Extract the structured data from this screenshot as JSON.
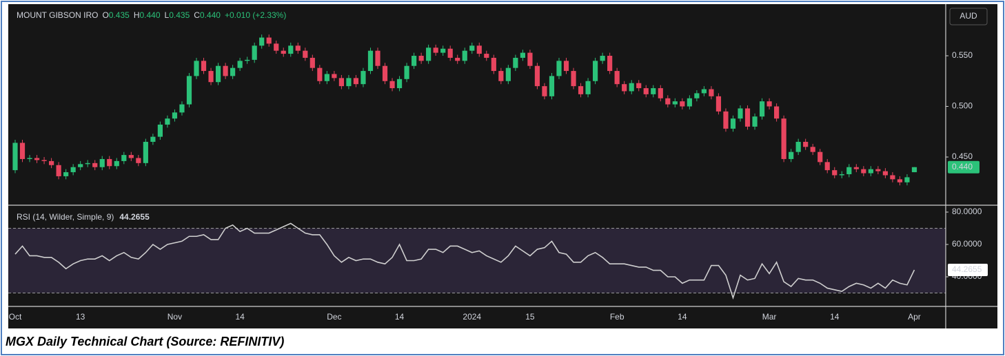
{
  "header": {
    "symbol": "MOUNT GIBSON IRO",
    "fields": [
      {
        "key": "O",
        "value": "0.435"
      },
      {
        "key": "H",
        "value": "0.440"
      },
      {
        "key": "L",
        "value": "0.435"
      },
      {
        "key": "C",
        "value": "0.440"
      }
    ],
    "change": "+0.010 (+2.33%)",
    "currency": "AUD"
  },
  "caption": "MGX Daily Technical Chart (Source: REFINITIV)",
  "chart_data": [
    {
      "type": "candlestick",
      "up_color": "#2bc279",
      "down_color": "#e8455f",
      "ylim": [
        0.4024,
        0.5983
      ],
      "yticks": [
        {
          "value": 0.45,
          "label": "0.450"
        },
        {
          "value": 0.5,
          "label": "0.500"
        },
        {
          "value": 0.55,
          "label": "0.550"
        }
      ],
      "last_price": {
        "value": 0.44,
        "label": "0.440"
      },
      "open": [
        0.437,
        0.464,
        0.448,
        0.449,
        0.447,
        0.446,
        0.442,
        0.431,
        0.435,
        0.44,
        0.443,
        0.444,
        0.44,
        0.448,
        0.441,
        0.446,
        0.452,
        0.449,
        0.444,
        0.465,
        0.47,
        0.482,
        0.488,
        0.494,
        0.502,
        0.53,
        0.545,
        0.535,
        0.524,
        0.54,
        0.53,
        0.538,
        0.545,
        0.546,
        0.56,
        0.568,
        0.562,
        0.555,
        0.552,
        0.56,
        0.555,
        0.548,
        0.538,
        0.525,
        0.532,
        0.528,
        0.52,
        0.528,
        0.522,
        0.535,
        0.555,
        0.54,
        0.525,
        0.518,
        0.527,
        0.54,
        0.55,
        0.545,
        0.558,
        0.553,
        0.557,
        0.548,
        0.545,
        0.555,
        0.56,
        0.552,
        0.548,
        0.535,
        0.525,
        0.538,
        0.548,
        0.553,
        0.54,
        0.52,
        0.51,
        0.53,
        0.545,
        0.535,
        0.52,
        0.512,
        0.525,
        0.545,
        0.55,
        0.535,
        0.522,
        0.515,
        0.523,
        0.518,
        0.512,
        0.518,
        0.508,
        0.502,
        0.505,
        0.5,
        0.508,
        0.513,
        0.517,
        0.51,
        0.495,
        0.478,
        0.488,
        0.498,
        0.48,
        0.49,
        0.505,
        0.5,
        0.488,
        0.448,
        0.455,
        0.465,
        0.46,
        0.455,
        0.445,
        0.437,
        0.432,
        0.433,
        0.44,
        0.438,
        0.434,
        0.438,
        0.436,
        0.432,
        0.428,
        0.425,
        0.435
      ],
      "high": [
        0.467,
        0.467,
        0.452,
        0.452,
        0.45,
        0.449,
        0.445,
        0.438,
        0.443,
        0.446,
        0.447,
        0.447,
        0.451,
        0.451,
        0.449,
        0.455,
        0.455,
        0.452,
        0.468,
        0.473,
        0.485,
        0.491,
        0.497,
        0.505,
        0.533,
        0.548,
        0.548,
        0.538,
        0.543,
        0.543,
        0.541,
        0.548,
        0.549,
        0.563,
        0.571,
        0.571,
        0.565,
        0.558,
        0.563,
        0.563,
        0.558,
        0.551,
        0.541,
        0.535,
        0.535,
        0.531,
        0.531,
        0.531,
        0.538,
        0.558,
        0.558,
        0.543,
        0.528,
        0.53,
        0.543,
        0.553,
        0.553,
        0.561,
        0.561,
        0.56,
        0.56,
        0.551,
        0.558,
        0.563,
        0.563,
        0.555,
        0.551,
        0.538,
        0.541,
        0.551,
        0.556,
        0.556,
        0.543,
        0.523,
        0.533,
        0.548,
        0.548,
        0.538,
        0.523,
        0.528,
        0.548,
        0.553,
        0.553,
        0.538,
        0.525,
        0.526,
        0.526,
        0.521,
        0.521,
        0.521,
        0.511,
        0.508,
        0.508,
        0.511,
        0.516,
        0.52,
        0.52,
        0.513,
        0.498,
        0.491,
        0.501,
        0.501,
        0.493,
        0.508,
        0.508,
        0.503,
        0.491,
        0.458,
        0.468,
        0.468,
        0.463,
        0.458,
        0.448,
        0.44,
        0.436,
        0.443,
        0.443,
        0.441,
        0.441,
        0.441,
        0.439,
        0.435,
        0.431,
        0.433,
        0.44
      ],
      "low": [
        0.434,
        0.445,
        0.445,
        0.444,
        0.443,
        0.439,
        0.428,
        0.428,
        0.432,
        0.437,
        0.44,
        0.437,
        0.437,
        0.438,
        0.438,
        0.443,
        0.446,
        0.441,
        0.441,
        0.462,
        0.467,
        0.479,
        0.485,
        0.491,
        0.499,
        0.527,
        0.532,
        0.521,
        0.521,
        0.527,
        0.527,
        0.535,
        0.542,
        0.543,
        0.557,
        0.559,
        0.552,
        0.549,
        0.549,
        0.552,
        0.545,
        0.535,
        0.522,
        0.522,
        0.525,
        0.517,
        0.517,
        0.519,
        0.519,
        0.532,
        0.537,
        0.522,
        0.515,
        0.515,
        0.524,
        0.537,
        0.542,
        0.542,
        0.55,
        0.55,
        0.545,
        0.542,
        0.542,
        0.552,
        0.549,
        0.545,
        0.532,
        0.522,
        0.522,
        0.535,
        0.545,
        0.537,
        0.517,
        0.507,
        0.507,
        0.527,
        0.532,
        0.517,
        0.509,
        0.509,
        0.522,
        0.542,
        0.532,
        0.519,
        0.512,
        0.512,
        0.515,
        0.509,
        0.509,
        0.505,
        0.499,
        0.499,
        0.497,
        0.497,
        0.505,
        0.51,
        0.507,
        0.492,
        0.475,
        0.475,
        0.485,
        0.477,
        0.477,
        0.487,
        0.497,
        0.485,
        0.445,
        0.445,
        0.452,
        0.457,
        0.452,
        0.442,
        0.434,
        0.429,
        0.429,
        0.43,
        0.435,
        0.431,
        0.431,
        0.433,
        0.429,
        0.425,
        0.422,
        0.422,
        0.435
      ],
      "close": [
        0.464,
        0.448,
        0.449,
        0.447,
        0.446,
        0.442,
        0.431,
        0.435,
        0.44,
        0.443,
        0.444,
        0.44,
        0.448,
        0.441,
        0.446,
        0.452,
        0.449,
        0.444,
        0.465,
        0.47,
        0.482,
        0.488,
        0.494,
        0.502,
        0.53,
        0.545,
        0.535,
        0.524,
        0.54,
        0.53,
        0.538,
        0.545,
        0.546,
        0.56,
        0.568,
        0.562,
        0.555,
        0.552,
        0.56,
        0.555,
        0.548,
        0.538,
        0.525,
        0.532,
        0.528,
        0.52,
        0.528,
        0.522,
        0.535,
        0.555,
        0.54,
        0.525,
        0.518,
        0.527,
        0.54,
        0.55,
        0.545,
        0.558,
        0.553,
        0.557,
        0.548,
        0.545,
        0.555,
        0.56,
        0.552,
        0.548,
        0.535,
        0.525,
        0.538,
        0.548,
        0.553,
        0.54,
        0.52,
        0.51,
        0.53,
        0.545,
        0.535,
        0.52,
        0.512,
        0.525,
        0.545,
        0.55,
        0.535,
        0.522,
        0.515,
        0.523,
        0.518,
        0.512,
        0.518,
        0.508,
        0.502,
        0.505,
        0.5,
        0.508,
        0.513,
        0.517,
        0.51,
        0.495,
        0.478,
        0.488,
        0.498,
        0.48,
        0.49,
        0.505,
        0.5,
        0.488,
        0.448,
        0.455,
        0.465,
        0.46,
        0.455,
        0.445,
        0.437,
        0.432,
        0.433,
        0.44,
        0.438,
        0.434,
        0.438,
        0.436,
        0.432,
        0.428,
        0.425,
        0.43,
        0.44
      ]
    },
    {
      "type": "line",
      "title": "RSI (14, Wilder, Simple, 9)",
      "last_value": 44.2655,
      "color": "#cfcfcf",
      "ylim": [
        21.7,
        83.4
      ],
      "yticks": [
        {
          "value": 80,
          "label": "80.0000"
        },
        {
          "value": 60,
          "label": "60.0000"
        },
        {
          "value": 40,
          "label": "40.0000"
        }
      ],
      "bands": [
        30,
        70
      ],
      "band_color": "#2b2537",
      "categories": [
        "Oct",
        null,
        null,
        null,
        null,
        null,
        null,
        null,
        null,
        "13",
        null,
        null,
        null,
        null,
        null,
        null,
        null,
        null,
        null,
        null,
        null,
        null,
        "Nov",
        null,
        null,
        null,
        null,
        null,
        null,
        null,
        null,
        "14",
        null,
        null,
        null,
        null,
        null,
        null,
        null,
        null,
        null,
        null,
        null,
        null,
        "Dec",
        null,
        null,
        null,
        null,
        null,
        null,
        null,
        null,
        "14",
        null,
        null,
        null,
        null,
        null,
        null,
        null,
        null,
        null,
        "2024",
        null,
        null,
        null,
        null,
        null,
        null,
        null,
        "15",
        null,
        null,
        null,
        null,
        null,
        null,
        null,
        null,
        null,
        null,
        null,
        "Feb",
        null,
        null,
        null,
        null,
        null,
        null,
        null,
        null,
        "14",
        null,
        null,
        null,
        null,
        null,
        null,
        null,
        null,
        null,
        null,
        null,
        "Mar",
        null,
        null,
        null,
        null,
        null,
        null,
        null,
        null,
        "14",
        null,
        null,
        null,
        null,
        null,
        null,
        null,
        null,
        null,
        null,
        "Apr"
      ],
      "values": [
        54,
        59,
        53,
        53,
        52,
        52,
        49,
        45,
        48,
        50,
        51,
        51,
        53,
        50,
        53,
        55,
        52,
        51,
        55,
        60,
        57,
        60,
        61,
        62,
        65,
        65,
        66,
        63,
        63,
        70,
        72,
        68,
        70,
        67,
        67,
        67,
        69,
        71,
        73,
        70,
        67,
        66,
        66,
        60,
        53,
        49,
        52,
        50,
        51,
        51,
        49,
        48,
        52,
        60,
        50,
        50,
        51,
        57,
        57,
        55,
        59,
        59,
        57,
        55,
        56,
        53,
        51,
        49,
        53,
        59,
        56,
        53,
        57,
        58,
        62,
        55,
        54,
        49,
        49,
        53,
        55,
        52,
        48,
        48,
        48,
        47,
        46,
        46,
        44,
        44,
        40,
        40,
        36,
        38,
        38,
        38,
        47,
        47,
        41,
        27,
        41,
        38,
        39,
        48,
        42,
        49,
        37,
        34,
        39,
        38,
        38,
        36,
        33,
        32,
        31,
        34,
        36,
        35,
        33,
        36,
        33,
        38,
        36,
        35,
        44.2655
      ]
    }
  ]
}
